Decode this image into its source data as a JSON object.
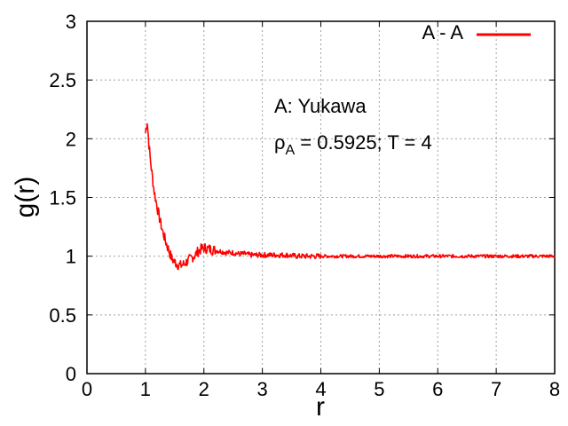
{
  "chart_data": {
    "type": "line",
    "xlabel": "r",
    "ylabel": "g(r)",
    "xlim": [
      0,
      8
    ],
    "ylim": [
      0,
      3
    ],
    "x_ticks": [
      0,
      1,
      2,
      3,
      4,
      5,
      6,
      7,
      8
    ],
    "x_tick_labels": [
      "0",
      "1",
      "2",
      "3",
      "4",
      "5",
      "6",
      "7",
      "8"
    ],
    "y_ticks": [
      0,
      0.5,
      1,
      1.5,
      2,
      2.5,
      3
    ],
    "y_tick_labels": [
      "0",
      "0.5",
      "1",
      "1.5",
      "2",
      "2.5",
      "3"
    ],
    "grid": true,
    "legend_position": "top-right",
    "annotations": {
      "system": "A: Yukawa",
      "rho_symbol": "ρ",
      "rho_subscript": "A",
      "params": " = 0.5925; T = 4"
    },
    "series": [
      {
        "name": "A - A",
        "color": "#ff0000",
        "x": [
          1.0,
          1.03,
          1.06,
          1.1,
          1.15,
          1.2,
          1.25,
          1.3,
          1.35,
          1.4,
          1.45,
          1.5,
          1.55,
          1.6,
          1.65,
          1.7,
          1.75,
          1.8,
          1.85,
          1.9,
          1.95,
          2.0,
          2.1,
          2.2,
          2.3,
          2.4,
          2.5,
          2.6,
          2.7,
          2.8,
          2.9,
          3.0,
          3.2,
          3.4,
          3.6,
          3.8,
          4.0,
          4.5,
          5.0,
          5.5,
          6.0,
          6.5,
          7.0,
          7.5,
          8.0
        ],
        "values": [
          2.05,
          2.15,
          1.95,
          1.75,
          1.55,
          1.42,
          1.3,
          1.2,
          1.12,
          1.05,
          0.98,
          0.95,
          0.93,
          0.92,
          0.93,
          0.95,
          0.97,
          0.99,
          1.01,
          1.04,
          1.06,
          1.07,
          1.06,
          1.05,
          1.04,
          1.03,
          1.03,
          1.02,
          1.02,
          1.01,
          1.01,
          1.01,
          1.01,
          1.01,
          1.0,
          1.0,
          1.0,
          1.0,
          1.0,
          1.0,
          1.0,
          1.0,
          1.0,
          1.0,
          1.0
        ]
      }
    ]
  }
}
